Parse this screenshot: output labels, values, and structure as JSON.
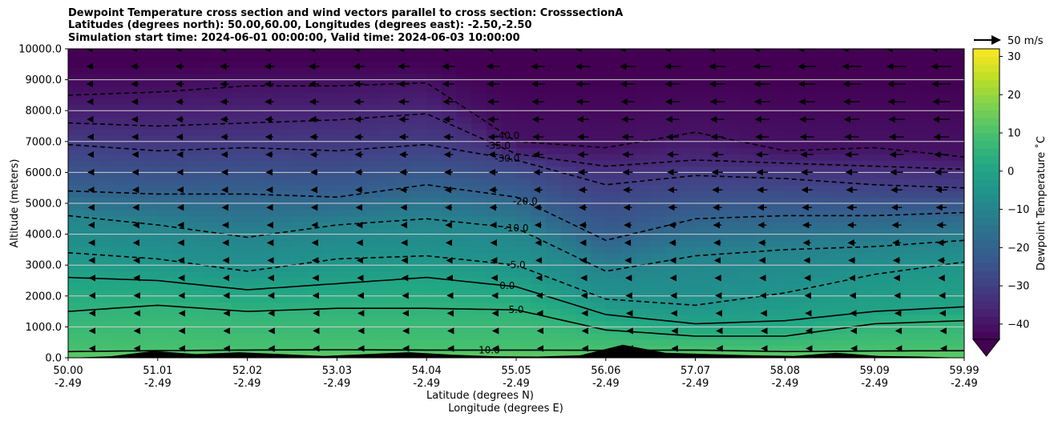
{
  "title_lines": [
    "Dewpoint Temperature cross section and wind vectors parallel to cross section: CrosssectionA",
    "Latitudes (degrees north): 50.00,60.00, Longitudes (degrees east): -2.50,-2.50",
    "Simulation start time: 2024-06-01 00:00:00, Valid time: 2024-06-03 10:00:00"
  ],
  "chart_data": {
    "type": "heatmap",
    "title": "Dewpoint Temperature cross section and wind vectors parallel to cross section: CrosssectionA",
    "ylabel": "Altitude (meters)",
    "xlabel": "Latitude (degrees N)",
    "xlabel2": "Longitude (degrees E)",
    "ylim": [
      0,
      10000
    ],
    "xlim": [
      50.0,
      59.99
    ],
    "y_ticks": [
      "0.0",
      "1000.0",
      "2000.0",
      "3000.0",
      "4000.0",
      "5000.0",
      "6000.0",
      "7000.0",
      "8000.0",
      "9000.0",
      "10000.0"
    ],
    "x_ticks": [
      {
        "lat": "50.00",
        "lon": "-2.49"
      },
      {
        "lat": "51.01",
        "lon": "-2.49"
      },
      {
        "lat": "52.02",
        "lon": "-2.49"
      },
      {
        "lat": "53.03",
        "lon": "-2.49"
      },
      {
        "lat": "54.04",
        "lon": "-2.49"
      },
      {
        "lat": "55.05",
        "lon": "-2.49"
      },
      {
        "lat": "56.06",
        "lon": "-2.49"
      },
      {
        "lat": "57.07",
        "lon": "-2.49"
      },
      {
        "lat": "58.08",
        "lon": "-2.49"
      },
      {
        "lat": "59.09",
        "lon": "-2.49"
      },
      {
        "lat": "59.99",
        "lon": "-2.49"
      }
    ],
    "colorbar": {
      "label": "Dewpoint Temperature ˚C",
      "range": [
        -44,
        32
      ],
      "ticks": [
        "30",
        "20",
        "10",
        "0",
        "−10",
        "−20",
        "−30",
        "−40"
      ],
      "colormap": "viridis",
      "extend": "min"
    },
    "reference_vector_label": "50 m/s",
    "contour_labels": [
      "-40.0",
      "-35.0",
      "-30.0",
      "-20.0",
      "-10.0",
      "-5.0",
      "0.0",
      "5.0",
      "10.0"
    ],
    "approx_isotherms": [
      {
        "value": 10,
        "heights_m": [
          200,
          230,
          250,
          260,
          250,
          250,
          240,
          250,
          200,
          220,
          230
        ]
      },
      {
        "value": 5,
        "heights_m": [
          1500,
          1700,
          1500,
          1600,
          1600,
          1550,
          900,
          700,
          700,
          1100,
          1200
        ]
      },
      {
        "value": 0,
        "heights_m": [
          2600,
          2500,
          2200,
          2400,
          2600,
          2300,
          1400,
          1100,
          1200,
          1500,
          1650
        ]
      },
      {
        "value": -5,
        "heights_m": [
          3400,
          3200,
          2800,
          3200,
          3300,
          3000,
          1900,
          1700,
          2100,
          2700,
          3100
        ]
      },
      {
        "value": -10,
        "heights_m": [
          4600,
          4300,
          3900,
          4300,
          4500,
          4200,
          2800,
          3300,
          3500,
          3600,
          3800
        ]
      },
      {
        "value": -20,
        "heights_m": [
          5400,
          5300,
          5300,
          5200,
          5600,
          5200,
          3800,
          4500,
          4600,
          4600,
          4700
        ]
      },
      {
        "value": -30,
        "heights_m": [
          6900,
          6700,
          6800,
          6700,
          6900,
          6400,
          5600,
          5900,
          5800,
          5600,
          5500
        ]
      },
      {
        "value": -35,
        "heights_m": [
          7600,
          7500,
          7600,
          7700,
          7900,
          6600,
          6200,
          6400,
          6300,
          6200,
          6100
        ]
      },
      {
        "value": -40,
        "heights_m": [
          8500,
          8600,
          8800,
          8800,
          8900,
          7000,
          6800,
          7300,
          6700,
          6800,
          6500
        ]
      }
    ],
    "terrain_heights_m": [
      0,
      50,
      220,
      120,
      180,
      120,
      60,
      120,
      180,
      100,
      50,
      40,
      80,
      420,
      160,
      120,
      80,
      60,
      160,
      60,
      40,
      0
    ]
  }
}
